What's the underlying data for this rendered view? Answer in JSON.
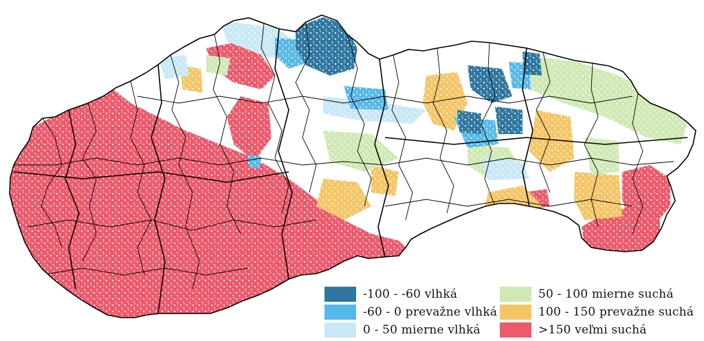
{
  "map": {
    "country": "Slovakia",
    "outline_color": "#000000",
    "background": "#ffffff"
  },
  "legend": {
    "items": [
      {
        "label": "-100 - -60 vlhká",
        "color": "#2f77a0"
      },
      {
        "label": "-60 - 0 prevažne vlhká",
        "color": "#56b8ea"
      },
      {
        "label": "0 - 50 mierne vlhká",
        "color": "#c8e8f6"
      },
      {
        "label": "50 - 100 mierne suchá",
        "color": "#cfe9b4"
      },
      {
        "label": "100 - 150 prevažne suchá",
        "color": "#f5c565"
      },
      {
        "label": ">150 veľmi suchá",
        "color": "#ec5a6b"
      }
    ]
  }
}
